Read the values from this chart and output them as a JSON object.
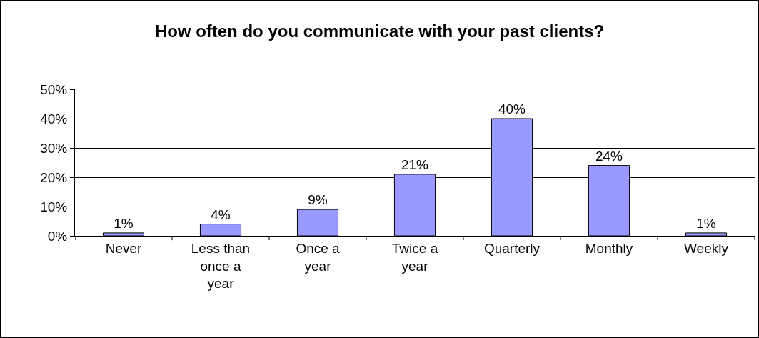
{
  "chart_data": {
    "type": "bar",
    "title": "How often do you communicate with your past clients?",
    "categories": [
      "Never",
      "Less than once a year",
      "Once a year",
      "Twice a year",
      "Quarterly",
      "Monthly",
      "Weekly"
    ],
    "values": [
      1,
      4,
      9,
      21,
      40,
      24,
      1
    ],
    "value_labels": [
      "1%",
      "4%",
      "9%",
      "21%",
      "40%",
      "24%",
      "1%"
    ],
    "color": "#9999ff",
    "ylim": [
      0,
      50
    ],
    "yticks": [
      {
        "value": 0,
        "label": "0%"
      },
      {
        "value": 10,
        "label": "10%"
      },
      {
        "value": 20,
        "label": "20%"
      },
      {
        "value": 30,
        "label": "30%"
      },
      {
        "value": 40,
        "label": "40%"
      },
      {
        "value": 50,
        "label": "50%"
      }
    ],
    "grid": "y"
  }
}
